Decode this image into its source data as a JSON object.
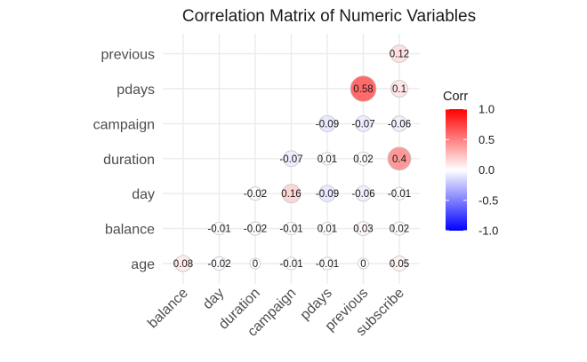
{
  "chart_data": {
    "type": "heatmap",
    "title": "Correlation Matrix of Numeric Variables",
    "x_categories": [
      "balance",
      "day",
      "duration",
      "campaign",
      "pdays",
      "previous",
      "subscribe"
    ],
    "y_categories": [
      "age",
      "balance",
      "day",
      "duration",
      "campaign",
      "pdays",
      "previous"
    ],
    "cells": [
      {
        "x": "balance",
        "y": "age",
        "value": 0.08,
        "label": "0.08"
      },
      {
        "x": "day",
        "y": "age",
        "value": -0.02,
        "label": "-0.02"
      },
      {
        "x": "duration",
        "y": "age",
        "value": 0,
        "label": "0"
      },
      {
        "x": "campaign",
        "y": "age",
        "value": -0.01,
        "label": "-0.01"
      },
      {
        "x": "pdays",
        "y": "age",
        "value": -0.01,
        "label": "-0.01"
      },
      {
        "x": "previous",
        "y": "age",
        "value": 0,
        "label": "0"
      },
      {
        "x": "subscribe",
        "y": "age",
        "value": 0.05,
        "label": "0.05"
      },
      {
        "x": "day",
        "y": "balance",
        "value": -0.01,
        "label": "-0.01"
      },
      {
        "x": "duration",
        "y": "balance",
        "value": -0.02,
        "label": "-0.02"
      },
      {
        "x": "campaign",
        "y": "balance",
        "value": -0.01,
        "label": "-0.01"
      },
      {
        "x": "pdays",
        "y": "balance",
        "value": 0.01,
        "label": "0.01"
      },
      {
        "x": "previous",
        "y": "balance",
        "value": 0.03,
        "label": "0.03"
      },
      {
        "x": "subscribe",
        "y": "balance",
        "value": 0.02,
        "label": "0.02"
      },
      {
        "x": "duration",
        "y": "day",
        "value": -0.02,
        "label": "-0.02"
      },
      {
        "x": "campaign",
        "y": "day",
        "value": 0.16,
        "label": "0.16"
      },
      {
        "x": "pdays",
        "y": "day",
        "value": -0.09,
        "label": "-0.09"
      },
      {
        "x": "previous",
        "y": "day",
        "value": -0.06,
        "label": "-0.06"
      },
      {
        "x": "subscribe",
        "y": "day",
        "value": -0.01,
        "label": "-0.01"
      },
      {
        "x": "campaign",
        "y": "duration",
        "value": -0.07,
        "label": "-0.07"
      },
      {
        "x": "pdays",
        "y": "duration",
        "value": 0.01,
        "label": "0.01"
      },
      {
        "x": "previous",
        "y": "duration",
        "value": 0.02,
        "label": "0.02"
      },
      {
        "x": "subscribe",
        "y": "duration",
        "value": 0.4,
        "label": "0.4"
      },
      {
        "x": "pdays",
        "y": "campaign",
        "value": -0.09,
        "label": "-0.09"
      },
      {
        "x": "previous",
        "y": "campaign",
        "value": -0.07,
        "label": "-0.07"
      },
      {
        "x": "subscribe",
        "y": "campaign",
        "value": -0.06,
        "label": "-0.06"
      },
      {
        "x": "previous",
        "y": "pdays",
        "value": 0.58,
        "label": "0.58"
      },
      {
        "x": "subscribe",
        "y": "pdays",
        "value": 0.1,
        "label": "0.1"
      },
      {
        "x": "subscribe",
        "y": "previous",
        "value": 0.12,
        "label": "0.12"
      }
    ],
    "legend": {
      "title": "Corr",
      "placement": "right",
      "range": [
        -1,
        1
      ],
      "ticks": [
        "1.0",
        "0.5",
        "0.0",
        "-0.5",
        "-1.0"
      ],
      "tick_values": [
        1,
        0.5,
        0,
        -0.5,
        -1
      ],
      "colors": {
        "low": "#0000ff",
        "mid": "#ffffff",
        "high": "#ff0000"
      }
    },
    "grid": true
  }
}
